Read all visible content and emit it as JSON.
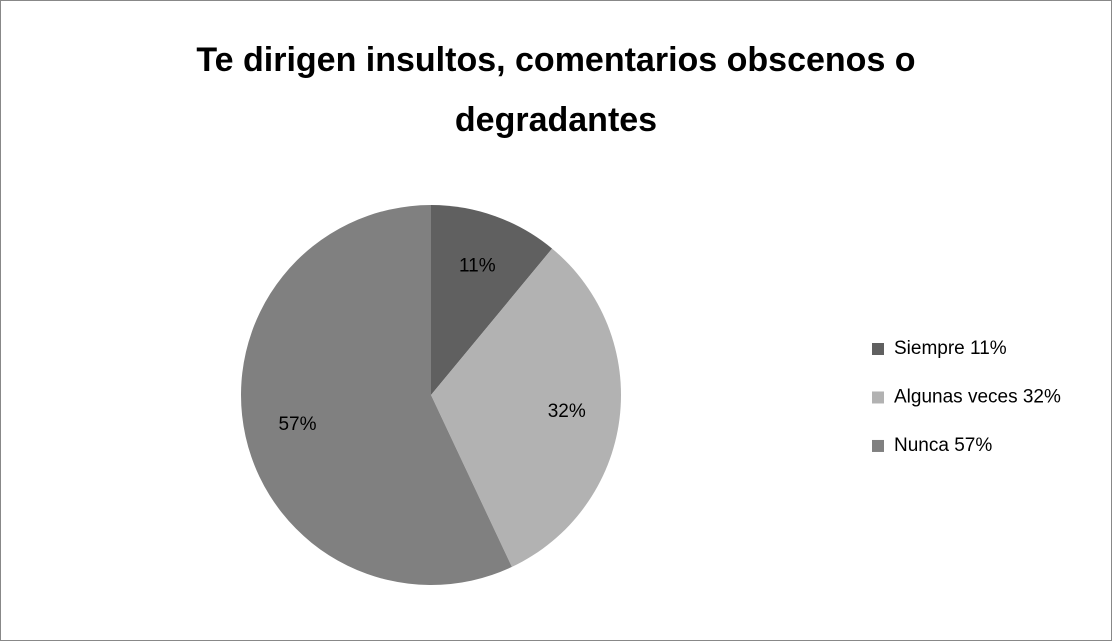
{
  "chart_data": {
    "type": "pie",
    "title": "Te dirigen insultos, comentarios obscenos o degradantes",
    "categories": [
      "Siempre",
      "Algunas veces",
      "Nunca"
    ],
    "values": [
      11,
      32,
      57
    ],
    "value_labels": [
      "11%",
      "32%",
      "57%"
    ],
    "colors": [
      "#606060",
      "#b2b2b2",
      "#808080"
    ],
    "legend": "right"
  }
}
